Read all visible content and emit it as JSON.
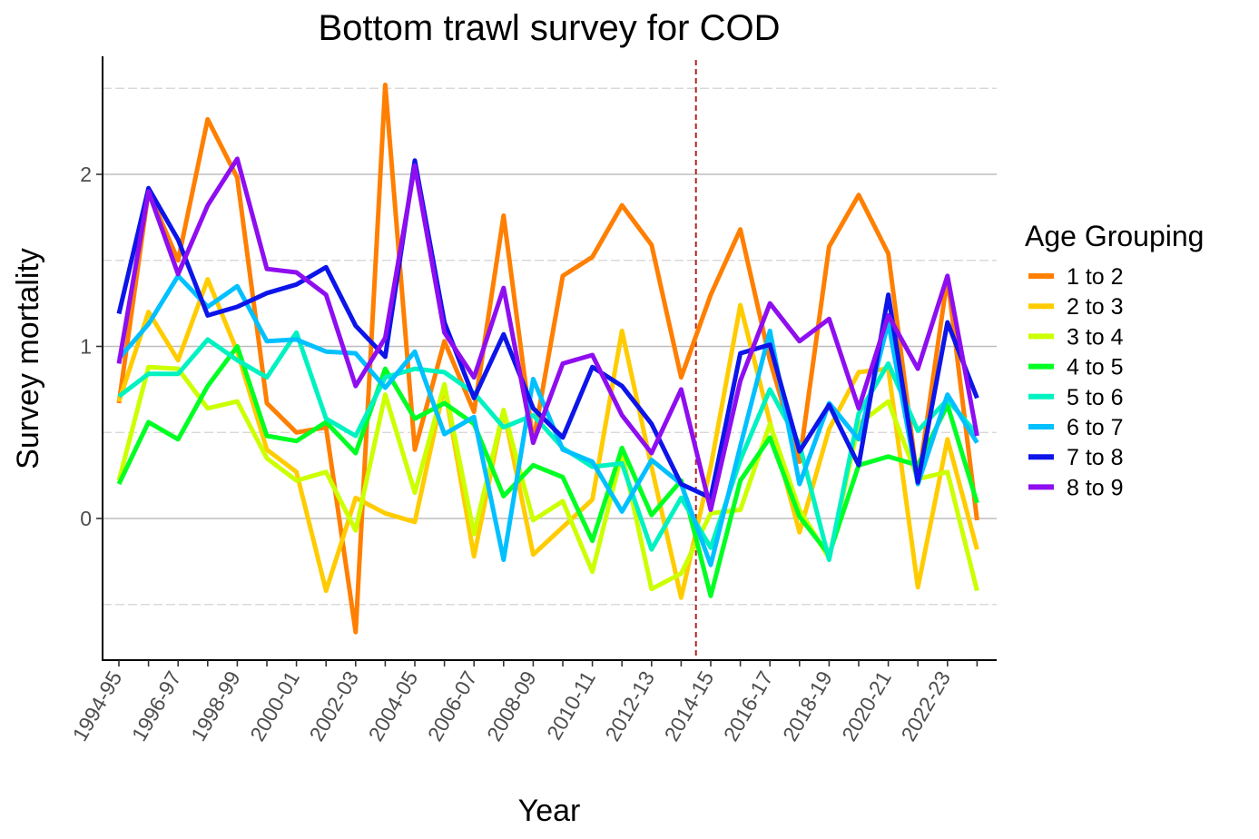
{
  "chart_data": {
    "type": "line",
    "title": "Bottom trawl survey for COD",
    "xlabel": "Year",
    "ylabel": "Survey mortality",
    "legend_title": "Age Grouping",
    "legend_position": "right",
    "grid": true,
    "ylim": [
      -0.82,
      2.7
    ],
    "y_ticks": [
      0,
      1,
      2
    ],
    "x": [
      "1994-95",
      "1995-96",
      "1996-97",
      "1997-98",
      "1998-99",
      "1999-00",
      "2000-01",
      "2001-02",
      "2002-03",
      "2003-04",
      "2004-05",
      "2005-06",
      "2006-07",
      "2007-08",
      "2008-09",
      "2009-10",
      "2010-11",
      "2011-12",
      "2012-13",
      "2013-14",
      "2014-15",
      "2015-16",
      "2016-17",
      "2017-18",
      "2018-19",
      "2019-20",
      "2020-21",
      "2021-22",
      "2022-23",
      "2023-24"
    ],
    "x_tick_labels": [
      "1994-95",
      "1996-97",
      "1998-99",
      "2000-01",
      "2002-03",
      "2004-05",
      "2006-07",
      "2008-09",
      "2010-11",
      "2012-13",
      "2014-15",
      "2016-17",
      "2018-19",
      "2020-21",
      "2022-23"
    ],
    "reference_line": {
      "between": [
        "2013-14",
        "2014-15"
      ],
      "color": "#b22222",
      "style": "dashed"
    },
    "series": [
      {
        "name": "1 to 2",
        "color": "#ff7f00",
        "values": [
          0.67,
          1.9,
          1.5,
          2.32,
          1.98,
          0.67,
          0.5,
          0.53,
          -0.66,
          2.52,
          0.4,
          1.03,
          0.62,
          1.76,
          0.44,
          1.41,
          1.52,
          1.82,
          1.59,
          0.82,
          1.3,
          1.68,
          0.92,
          0.33,
          1.58,
          1.88,
          1.54,
          0.2,
          1.4,
          -0.01
        ]
      },
      {
        "name": "2 to 3",
        "color": "#ffcc00",
        "values": [
          0.68,
          1.2,
          0.92,
          1.39,
          0.97,
          0.4,
          0.27,
          -0.42,
          0.12,
          0.03,
          -0.02,
          0.77,
          -0.22,
          0.63,
          -0.21,
          -0.05,
          0.11,
          1.09,
          0.3,
          -0.46,
          0.3,
          1.24,
          0.56,
          -0.08,
          0.52,
          0.85,
          0.87,
          -0.4,
          0.46,
          -0.18
        ]
      },
      {
        "name": "3 to 4",
        "color": "#ccff00",
        "values": [
          0.22,
          0.88,
          0.87,
          0.64,
          0.68,
          0.35,
          0.22,
          0.27,
          -0.07,
          0.72,
          0.15,
          0.78,
          -0.09,
          0.63,
          -0.01,
          0.1,
          -0.31,
          0.38,
          -0.41,
          -0.32,
          0.03,
          0.05,
          0.55,
          0.05,
          -0.23,
          0.55,
          0.68,
          0.23,
          0.27,
          -0.42
        ]
      },
      {
        "name": "4 to 5",
        "color": "#00ff22",
        "values": [
          0.2,
          0.56,
          0.46,
          0.77,
          1.0,
          0.48,
          0.45,
          0.56,
          0.38,
          0.87,
          0.58,
          0.67,
          0.55,
          0.13,
          0.31,
          0.24,
          -0.13,
          0.41,
          0.02,
          0.22,
          -0.45,
          0.22,
          0.47,
          0.01,
          -0.21,
          0.31,
          0.36,
          0.31,
          0.66,
          0.09
        ]
      },
      {
        "name": "5 to 6",
        "color": "#00f2c0",
        "values": [
          0.71,
          0.84,
          0.84,
          1.04,
          0.92,
          0.82,
          1.08,
          0.58,
          0.48,
          0.82,
          0.87,
          0.85,
          0.73,
          0.53,
          0.6,
          0.41,
          0.3,
          0.32,
          -0.18,
          0.12,
          -0.17,
          0.34,
          0.75,
          0.43,
          -0.24,
          0.61,
          0.9,
          0.51,
          0.69,
          0.49
        ]
      },
      {
        "name": "6 to 7",
        "color": "#00c0ff",
        "values": [
          0.93,
          1.13,
          1.41,
          1.23,
          1.35,
          1.03,
          1.04,
          0.97,
          0.96,
          0.76,
          0.97,
          0.49,
          0.59,
          -0.24,
          0.81,
          0.4,
          0.33,
          0.04,
          0.34,
          0.2,
          -0.27,
          0.42,
          1.09,
          0.2,
          0.67,
          0.46,
          1.14,
          0.2,
          0.72,
          0.44
        ]
      },
      {
        "name": "7 to 8",
        "color": "#0d15e8",
        "values": [
          1.19,
          1.92,
          1.62,
          1.18,
          1.23,
          1.31,
          1.36,
          1.46,
          1.12,
          0.94,
          2.08,
          1.14,
          0.7,
          1.07,
          0.64,
          0.47,
          0.88,
          0.77,
          0.55,
          0.2,
          0.12,
          0.96,
          1.01,
          0.39,
          0.66,
          0.31,
          1.3,
          0.21,
          1.14,
          0.7
        ]
      },
      {
        "name": "8 to 9",
        "color": "#8f0ef0",
        "values": [
          0.9,
          1.9,
          1.42,
          1.82,
          2.09,
          1.45,
          1.43,
          1.3,
          0.77,
          1.05,
          2.05,
          1.08,
          0.82,
          1.34,
          0.44,
          0.9,
          0.95,
          0.6,
          0.38,
          0.75,
          0.05,
          0.8,
          1.25,
          1.03,
          1.16,
          0.64,
          1.18,
          0.87,
          1.41,
          0.48
        ]
      }
    ]
  }
}
